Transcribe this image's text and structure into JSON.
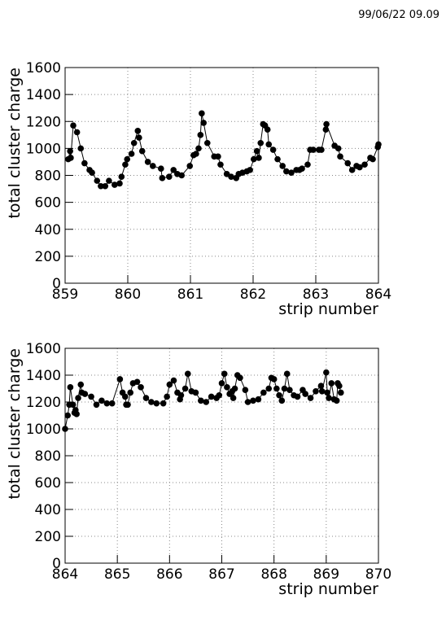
{
  "timestamp": "99/06/22  09.09",
  "chart_data": [
    {
      "type": "line",
      "xlabel": "strip number",
      "ylabel": "total cluster charge",
      "color": "#000000",
      "grid": true,
      "xlim": [
        859,
        864
      ],
      "xticks": [
        859,
        860,
        861,
        862,
        863,
        864
      ],
      "ylim": [
        0,
        1600
      ],
      "yticks": [
        0,
        200,
        400,
        600,
        800,
        1000,
        1200,
        1400,
        1600
      ],
      "x": [
        859.05,
        859.08,
        859.09,
        859.13,
        859.19,
        859.25,
        859.31,
        859.39,
        859.43,
        859.51,
        859.57,
        859.64,
        859.7,
        859.79,
        859.87,
        859.9,
        859.96,
        859.99,
        860.06,
        860.1,
        860.16,
        860.18,
        860.23,
        860.32,
        860.4,
        860.53,
        860.55,
        860.66,
        860.73,
        860.79,
        860.86,
        860.99,
        861.05,
        861.09,
        861.13,
        861.16,
        861.18,
        861.21,
        861.27,
        861.38,
        861.44,
        861.48,
        861.58,
        861.65,
        861.73,
        861.77,
        861.83,
        861.9,
        861.95,
        862.01,
        862.06,
        862.09,
        862.12,
        862.16,
        862.19,
        862.23,
        862.25,
        862.32,
        862.39,
        862.47,
        862.53,
        862.61,
        862.69,
        862.74,
        862.78,
        862.87,
        862.91,
        862.96,
        863.05,
        863.09,
        863.16,
        863.17,
        863.3,
        863.36,
        863.39,
        863.51,
        863.58,
        863.65,
        863.7,
        863.78,
        863.87,
        863.91,
        863.99,
        864.0
      ],
      "values": [
        920,
        980,
        930,
        1170,
        1120,
        1000,
        890,
        840,
        820,
        760,
        720,
        720,
        760,
        730,
        740,
        790,
        880,
        920,
        960,
        1040,
        1130,
        1080,
        980,
        900,
        870,
        850,
        780,
        790,
        840,
        810,
        800,
        870,
        950,
        960,
        1000,
        1100,
        1260,
        1190,
        1040,
        940,
        940,
        880,
        810,
        790,
        780,
        810,
        820,
        830,
        840,
        920,
        980,
        930,
        1040,
        1180,
        1170,
        1140,
        1030,
        990,
        920,
        870,
        830,
        820,
        840,
        840,
        850,
        880,
        990,
        990,
        990,
        990,
        1140,
        1180,
        1020,
        1000,
        940,
        890,
        840,
        870,
        860,
        880,
        930,
        920,
        1010,
        1030
      ]
    },
    {
      "type": "line",
      "xlabel": "strip number",
      "ylabel": "total cluster charge",
      "color": "#000000",
      "grid": true,
      "xlim": [
        864,
        870
      ],
      "xticks": [
        864,
        865,
        866,
        867,
        868,
        869,
        870
      ],
      "ylim": [
        0,
        1600
      ],
      "yticks": [
        0,
        200,
        400,
        600,
        800,
        1000,
        1200,
        1400,
        1600
      ],
      "x": [
        864.0,
        864.05,
        864.08,
        864.1,
        864.15,
        864.18,
        864.2,
        864.22,
        864.25,
        864.3,
        864.32,
        864.38,
        864.5,
        864.6,
        864.7,
        864.8,
        864.9,
        865.05,
        865.1,
        865.15,
        865.17,
        865.2,
        865.25,
        865.3,
        865.38,
        865.45,
        865.55,
        865.65,
        865.75,
        865.88,
        865.95,
        866.0,
        866.08,
        866.15,
        866.2,
        866.22,
        866.3,
        866.35,
        866.42,
        866.5,
        866.6,
        866.7,
        866.8,
        866.9,
        866.95,
        867.0,
        867.05,
        867.1,
        867.15,
        867.2,
        867.22,
        867.25,
        867.3,
        867.35,
        867.45,
        867.5,
        867.6,
        867.7,
        867.8,
        867.9,
        867.95,
        868.0,
        868.05,
        868.1,
        868.15,
        868.2,
        868.25,
        868.3,
        868.38,
        868.45,
        868.55,
        868.6,
        868.7,
        868.8,
        868.9,
        868.92,
        869.0,
        869.02,
        869.05,
        869.1,
        869.15,
        869.2,
        869.22,
        869.25,
        869.28
      ],
      "values": [
        1000,
        1100,
        1180,
        1310,
        1180,
        1120,
        1140,
        1110,
        1230,
        1330,
        1270,
        1260,
        1240,
        1180,
        1210,
        1190,
        1190,
        1370,
        1270,
        1240,
        1180,
        1180,
        1270,
        1340,
        1350,
        1310,
        1230,
        1200,
        1190,
        1190,
        1240,
        1330,
        1360,
        1270,
        1220,
        1250,
        1300,
        1410,
        1280,
        1270,
        1210,
        1200,
        1240,
        1230,
        1250,
        1340,
        1410,
        1310,
        1260,
        1280,
        1230,
        1300,
        1400,
        1380,
        1290,
        1200,
        1210,
        1220,
        1270,
        1300,
        1380,
        1370,
        1300,
        1250,
        1210,
        1300,
        1410,
        1290,
        1250,
        1240,
        1290,
        1260,
        1230,
        1280,
        1320,
        1280,
        1420,
        1270,
        1230,
        1340,
        1220,
        1210,
        1340,
        1320,
        1270
      ]
    }
  ]
}
